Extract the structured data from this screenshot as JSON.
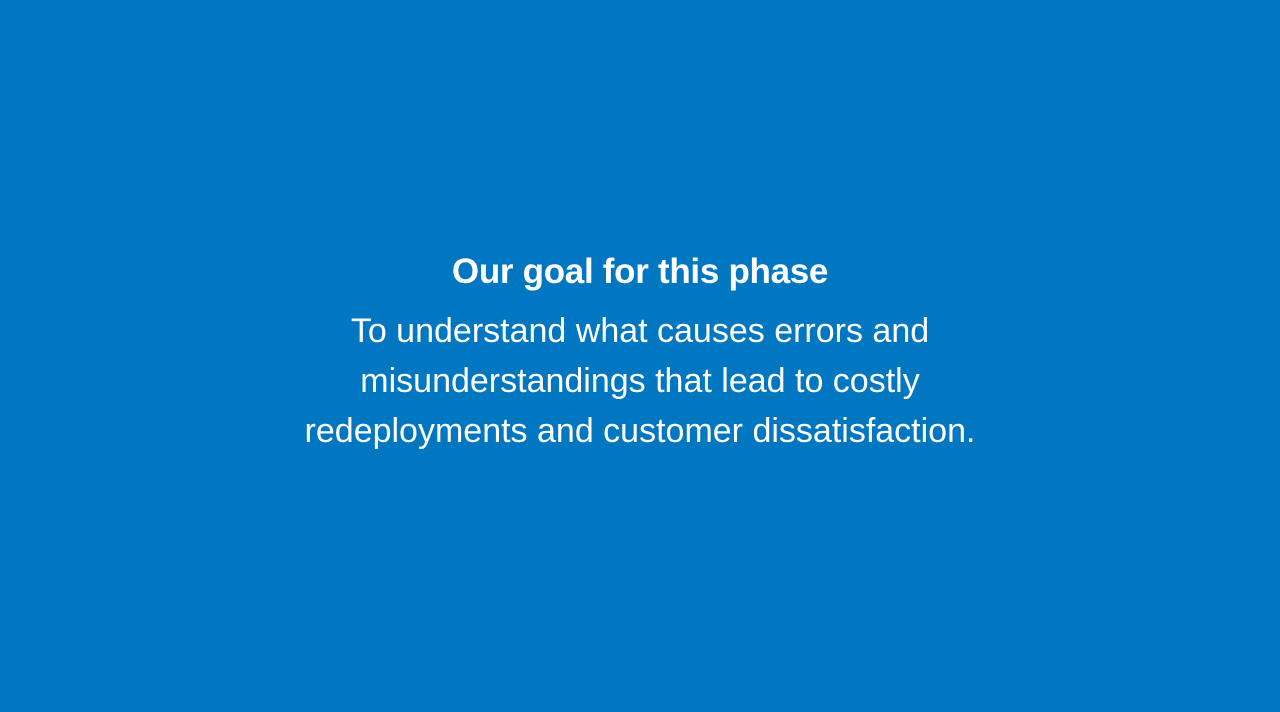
{
  "colors": {
    "background": "#0077C0",
    "text": "#FFFFFF"
  },
  "slide": {
    "heading": "Our goal for this phase",
    "body_lines": [
      "To understand what causes errors and",
      "misunderstandings that lead to costly",
      "redeployments and customer dissatisfaction."
    ]
  }
}
